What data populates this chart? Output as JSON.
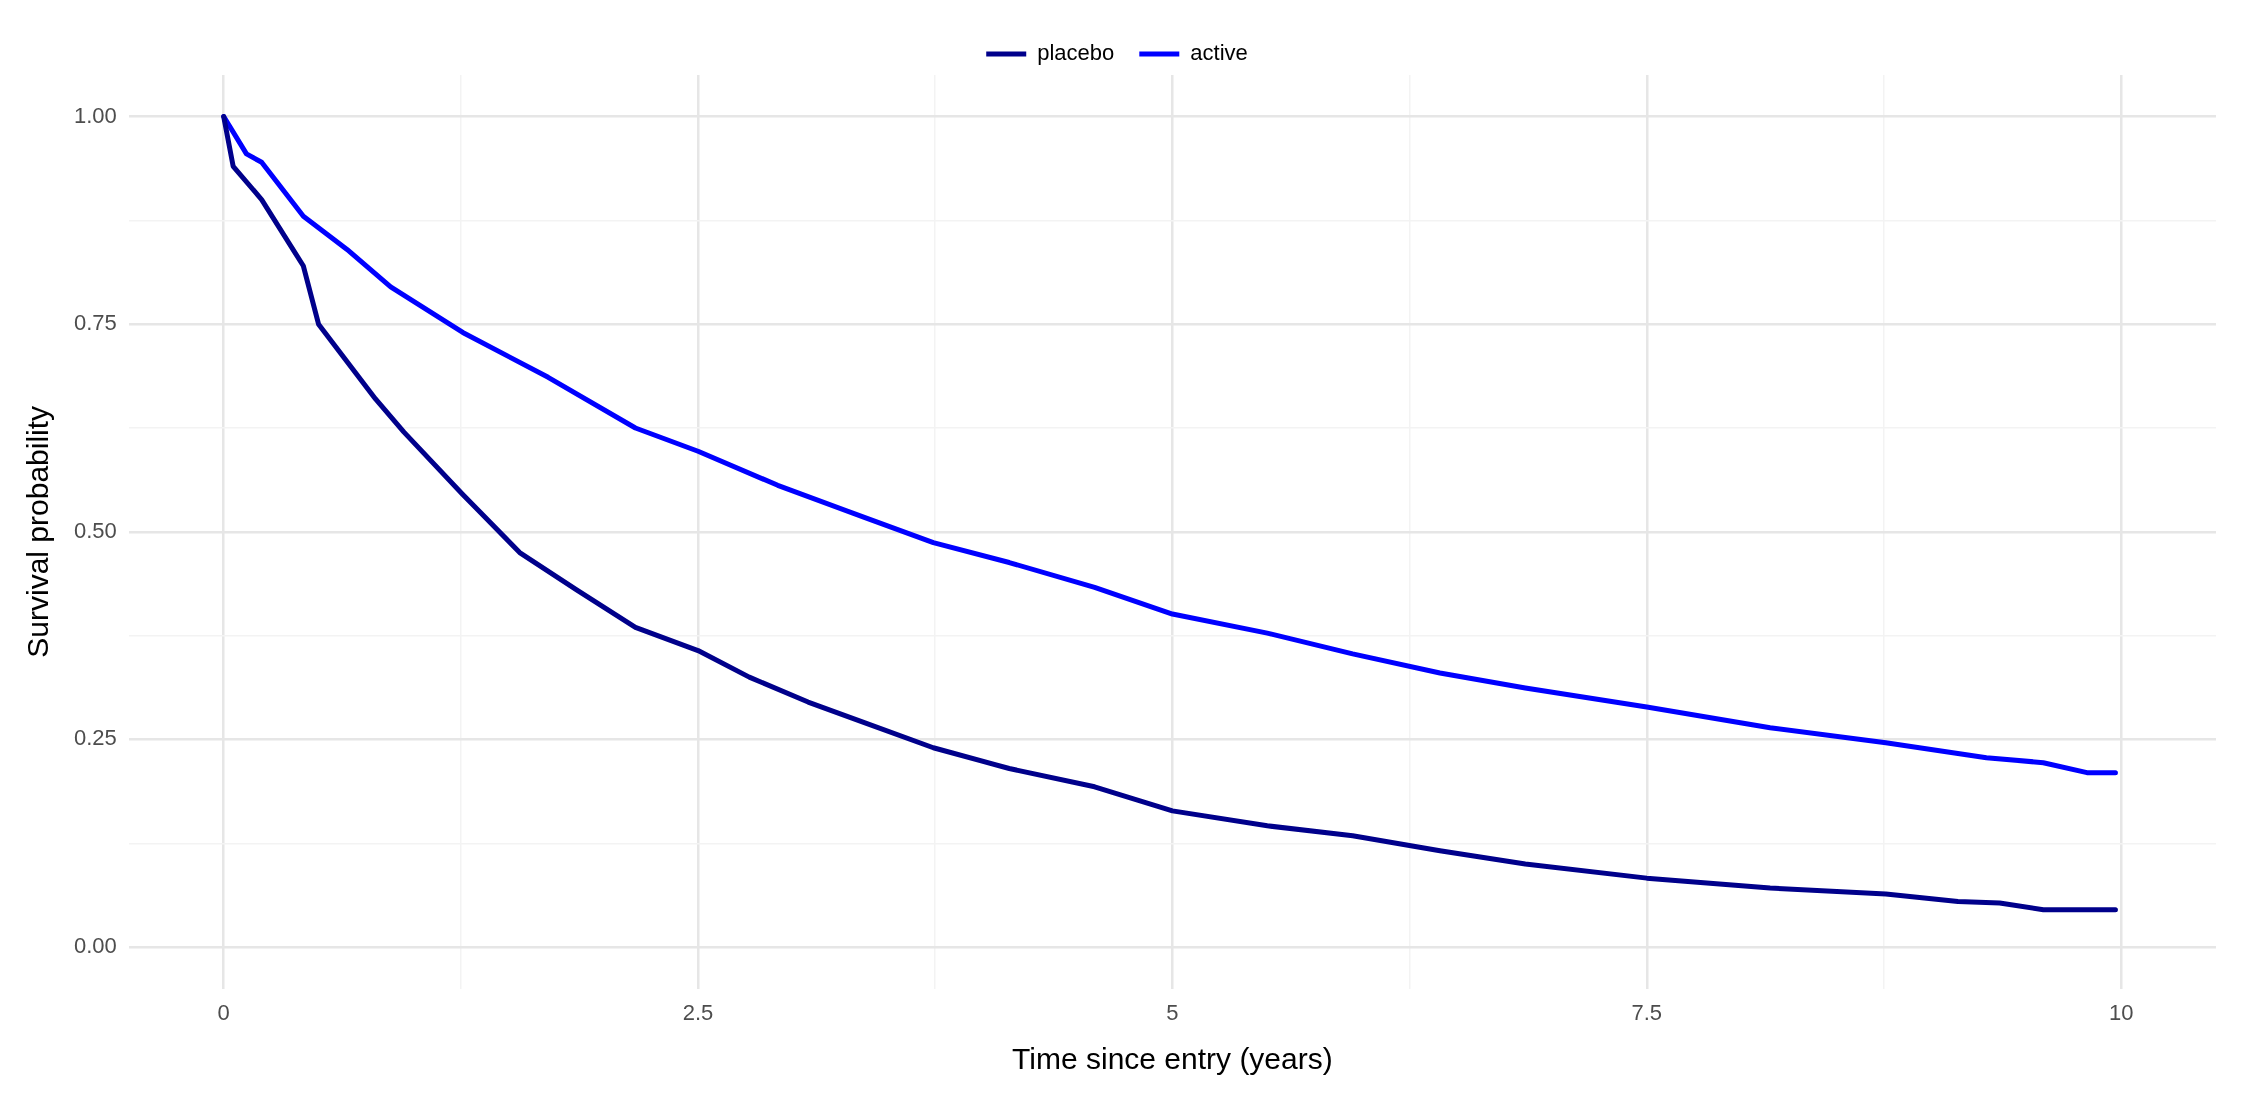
{
  "chart_data": {
    "type": "line",
    "xlabel": "Time since entry (years)",
    "ylabel": "Survival probability",
    "xlim": [
      -0.5,
      10.5
    ],
    "ylim": [
      -0.05,
      1.05
    ],
    "xticks": [
      0,
      {
        "value": 1.25,
        "label": null
      },
      2.5,
      {
        "value": 3.75,
        "label": null
      },
      5,
      {
        "value": 6.25,
        "label": null
      },
      7.5,
      {
        "value": 8.75,
        "label": null
      },
      10
    ],
    "yticks": [
      {
        "value": 0,
        "label": "0.00"
      },
      {
        "value": 0.125,
        "label": null
      },
      {
        "value": 0.25,
        "label": "0.25"
      },
      {
        "value": 0.375,
        "label": null
      },
      {
        "value": 0.5,
        "label": "0.50"
      },
      {
        "value": 0.625,
        "label": null
      },
      {
        "value": 0.75,
        "label": "0.75"
      },
      {
        "value": 0.875,
        "label": null
      },
      {
        "value": 1,
        "label": "1.00"
      }
    ],
    "grid": true,
    "legend": "top",
    "marker": "none",
    "line_style": "solid",
    "series": [
      {
        "name": "placebo",
        "color": "#00008b",
        "x": [
          0,
          0.05,
          0.2,
          0.42,
          0.5,
          0.8,
          0.95,
          1.26,
          1.56,
          1.86,
          2.17,
          2.5,
          2.77,
          3.08,
          3.38,
          3.74,
          4.14,
          4.59,
          5,
          5.5,
          5.95,
          6.41,
          6.86,
          7.5,
          8.15,
          8.76,
          9.14,
          9.36,
          9.59,
          9.97
        ],
        "values": [
          1,
          0.94,
          0.9,
          0.82,
          0.75,
          0.66,
          0.62,
          0.545,
          0.475,
          0.43,
          0.385,
          0.357,
          0.325,
          0.295,
          0.27,
          0.24,
          0.215,
          0.193,
          0.164,
          0.146,
          0.134,
          0.116,
          0.1,
          0.083,
          0.071,
          0.064,
          0.055,
          0.053,
          0.045,
          0.045
        ]
      },
      {
        "name": "active",
        "color": "#0000ff",
        "x": [
          0,
          0.12,
          0.2,
          0.42,
          0.65,
          0.88,
          1.26,
          1.71,
          2.17,
          2.5,
          2.92,
          3.38,
          3.74,
          4.14,
          4.59,
          5,
          5.5,
          5.95,
          6.41,
          6.86,
          7.5,
          8.15,
          8.76,
          9.29,
          9.59,
          9.82,
          9.97
        ],
        "values": [
          1,
          0.955,
          0.945,
          0.88,
          0.84,
          0.795,
          0.74,
          0.686,
          0.625,
          0.597,
          0.556,
          0.517,
          0.487,
          0.463,
          0.433,
          0.401,
          0.378,
          0.353,
          0.33,
          0.312,
          0.289,
          0.264,
          0.246,
          0.228,
          0.222,
          0.21,
          0.21
        ]
      }
    ]
  }
}
